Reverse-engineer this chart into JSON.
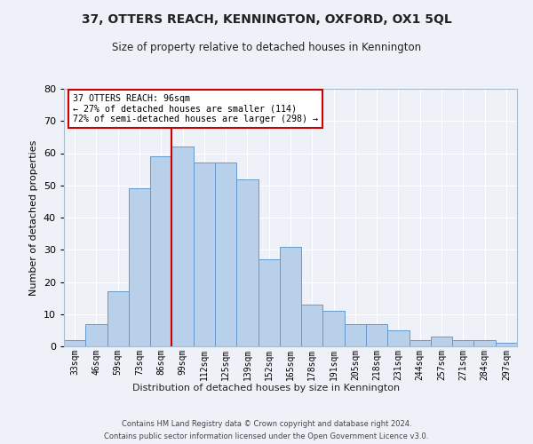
{
  "title": "37, OTTERS REACH, KENNINGTON, OXFORD, OX1 5QL",
  "subtitle": "Size of property relative to detached houses in Kennington",
  "xlabel": "Distribution of detached houses by size in Kennington",
  "ylabel": "Number of detached properties",
  "categories": [
    "33sqm",
    "46sqm",
    "59sqm",
    "73sqm",
    "86sqm",
    "99sqm",
    "112sqm",
    "125sqm",
    "139sqm",
    "152sqm",
    "165sqm",
    "178sqm",
    "191sqm",
    "205sqm",
    "218sqm",
    "231sqm",
    "244sqm",
    "257sqm",
    "271sqm",
    "284sqm",
    "297sqm"
  ],
  "values": [
    2,
    7,
    17,
    49,
    59,
    62,
    57,
    57,
    52,
    27,
    31,
    13,
    11,
    7,
    7,
    5,
    2,
    3,
    2,
    2,
    1
  ],
  "bar_color": "#b8d0ea",
  "bar_edge_color": "#6699cc",
  "vline_color": "#cc0000",
  "annotation_title": "37 OTTERS REACH: 96sqm",
  "annotation_line1": "← 27% of detached houses are smaller (114)",
  "annotation_line2": "72% of semi-detached houses are larger (298) →",
  "annotation_box_color": "#cc0000",
  "ylim": [
    0,
    80
  ],
  "yticks": [
    0,
    10,
    20,
    30,
    40,
    50,
    60,
    70,
    80
  ],
  "background_color": "#eef2f8",
  "grid_color": "#ffffff",
  "footer1": "Contains HM Land Registry data © Crown copyright and database right 2024.",
  "footer2": "Contains public sector information licensed under the Open Government Licence v3.0."
}
